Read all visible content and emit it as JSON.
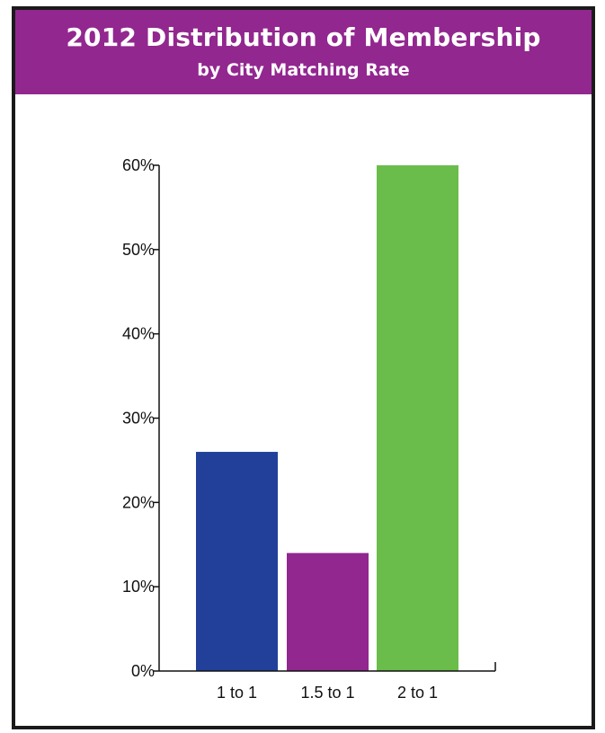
{
  "header": {
    "title": "2012 Distribution of Membership",
    "subtitle": "by City Matching Rate"
  },
  "colors": {
    "header_bg": "#92278f",
    "border": "#1a1a1a"
  },
  "chart_data": {
    "type": "bar",
    "title": "2012 Distribution of Membership",
    "subtitle": "by City Matching Rate",
    "categories": [
      "1 to 1",
      "1.5 to 1",
      "2 to 1"
    ],
    "values": [
      26,
      14,
      60
    ],
    "colors": [
      "#22409a",
      "#92278f",
      "#6abd4b"
    ],
    "ylim": [
      0,
      60
    ],
    "yticks": [
      0,
      10,
      20,
      30,
      40,
      50,
      60
    ],
    "ytick_labels": [
      "0%",
      "10%",
      "20%",
      "30%",
      "40%",
      "50%",
      "60%"
    ],
    "xlabel": "",
    "ylabel": "",
    "grid": false,
    "legend": "none"
  }
}
